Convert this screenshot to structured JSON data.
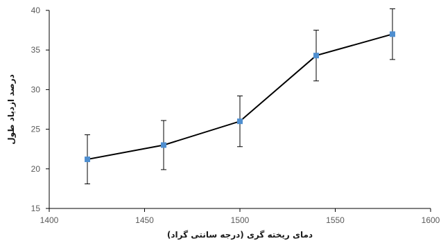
{
  "chart_data": {
    "type": "line",
    "title": "",
    "xlabel": "دمای ریخته گری (درجه سانتی گراد)",
    "ylabel": "درصد ازدیاد طول",
    "xlim": [
      1400,
      1600
    ],
    "ylim": [
      15,
      40
    ],
    "xticks": [
      1400,
      1450,
      1500,
      1550,
      1600
    ],
    "yticks": [
      15,
      20,
      25,
      30,
      35,
      40
    ],
    "grid": false,
    "legend": "none",
    "series": [
      {
        "x": [
          1420,
          1460,
          1500,
          1540,
          1580
        ],
        "y": [
          21.2,
          23.0,
          26.0,
          34.3,
          37.0
        ],
        "error": [
          3.1,
          3.1,
          3.2,
          3.2,
          3.2
        ],
        "line_color": "#000000",
        "marker_color": "#4f8fd0",
        "marker": "square"
      }
    ]
  }
}
